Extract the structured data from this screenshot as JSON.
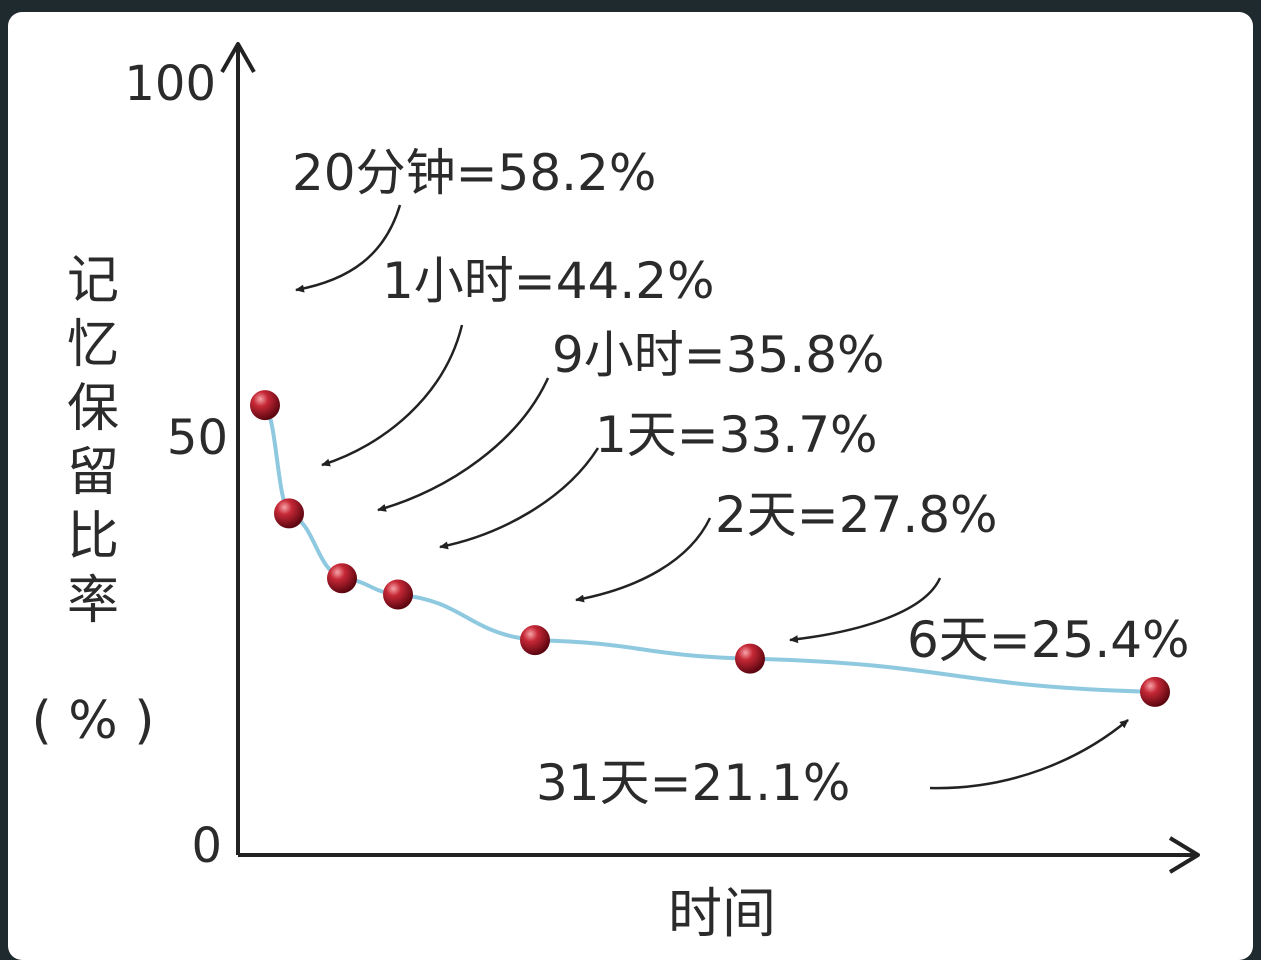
{
  "chart_data": {
    "type": "line",
    "xlabel": "时间",
    "ylabel_chars": [
      "记",
      "忆",
      "保",
      "留",
      "比",
      "率"
    ],
    "ylabel_unit": "( % )",
    "yticks": [
      "100",
      "50",
      "0"
    ],
    "ylim": [
      0,
      100
    ],
    "series": [
      {
        "points": [
          {
            "label": "20分钟=58.2%",
            "y": 58.2
          },
          {
            "label": "1小时=44.2%",
            "y": 44.2
          },
          {
            "label": "9小时=35.8%",
            "y": 35.8
          },
          {
            "label": "1天=33.7%",
            "y": 33.7
          },
          {
            "label": "2天=27.8%",
            "y": 27.8
          },
          {
            "label": "6天=25.4%",
            "y": 25.4
          },
          {
            "label": "31天=21.1%",
            "y": 21.1
          }
        ]
      }
    ],
    "colors": {
      "line": "#8ec9e0",
      "marker": "#b0182a",
      "axis": "#222222"
    }
  }
}
